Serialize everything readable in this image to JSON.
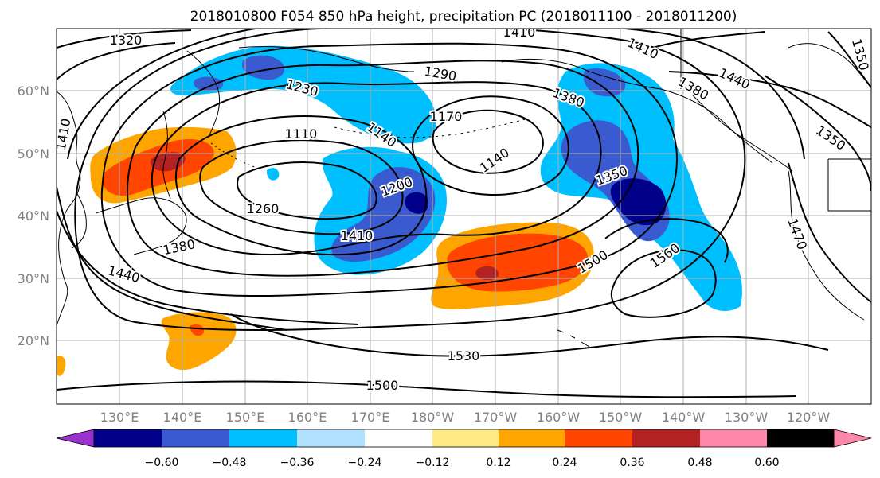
{
  "title": "2018010800 F054 850 hPa height, precipitation PC (2018011100 - 2018011200)",
  "lat_labels": [
    "60°N",
    "50°N",
    "40°N",
    "30°N",
    "20°N"
  ],
  "lon_labels": [
    "130°E",
    "140°E",
    "150°E",
    "160°E",
    "170°E",
    "180°W",
    "170°W",
    "160°W",
    "150°W",
    "140°W",
    "130°W",
    "120°W"
  ],
  "contour_labels": [
    "1320",
    "1410",
    "1410",
    "1440",
    "1350",
    "1230",
    "1290",
    "1380",
    "1380",
    "1170",
    "1110",
    "1140",
    "1140",
    "1350",
    "1410",
    "1200",
    "1350",
    "1260",
    "1410",
    "1380",
    "1440",
    "1500",
    "1560",
    "1530",
    "1500",
    "1470"
  ],
  "colorbar": {
    "colors": [
      "#9932cc",
      "#00008b",
      "#3a5bcf",
      "#00bfff",
      "#b0e2ff",
      "#ffffff",
      "#ffea85",
      "#ffa500",
      "#ff4500",
      "#b22222",
      "#ff88aa"
    ],
    "tick_labels": [
      "−0.60",
      "−0.48",
      "−0.36",
      "−0.24",
      "−0.12",
      "0.12",
      "0.24",
      "0.36",
      "0.48",
      "0.60"
    ]
  },
  "colors": {
    "neg_strong": "#00008b",
    "neg_mid": "#3a5bcf",
    "neg_weak": "#00bfff",
    "pos_weak": "#ffa500",
    "pos_mid": "#ff4500",
    "pos_strong": "#b22222",
    "grid": "#b0b0b0"
  }
}
